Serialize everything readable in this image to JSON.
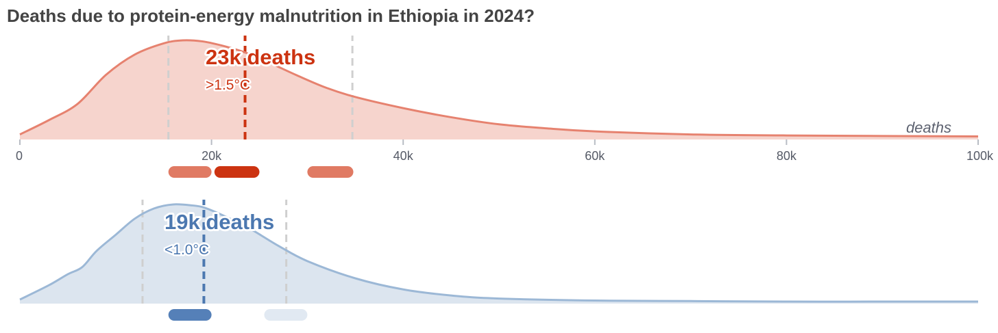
{
  "title": "Deaths due to protein-energy malnutrition in Ethiopia in 2024?",
  "chart_data": [
    {
      "type": "area",
      "scenario": ">1.5°C",
      "headline": "23k deaths",
      "axis_unit_label": "deaths",
      "xlim": [
        0,
        100000
      ],
      "x_ticks": [
        0,
        20000,
        40000,
        60000,
        80000,
        100000
      ],
      "x_tick_labels": [
        "0",
        "20k",
        "40k",
        "60k",
        "80k",
        "100k"
      ],
      "median": 23500,
      "interval": [
        15500,
        34700
      ],
      "x": [
        0,
        3000,
        6000,
        9000,
        12000,
        15000,
        17000,
        19000,
        21000,
        23500,
        26000,
        29000,
        32000,
        35000,
        40000,
        45000,
        50000,
        55000,
        60000,
        70000,
        80000,
        90000,
        100000
      ],
      "density": [
        0.05,
        0.19,
        0.35,
        0.64,
        0.84,
        0.95,
        0.98,
        0.97,
        0.93,
        0.86,
        0.76,
        0.63,
        0.51,
        0.42,
        0.31,
        0.22,
        0.15,
        0.11,
        0.08,
        0.05,
        0.04,
        0.035,
        0.03
      ],
      "range_pills": [
        {
          "start": 15500,
          "end": 20000,
          "color": "#e07a63"
        },
        {
          "start": 20300,
          "end": 25000,
          "color": "#cc3311"
        },
        {
          "start": 30000,
          "end": 34800,
          "color": "#e07a63"
        }
      ],
      "colors": {
        "fill": "#f6d4cd",
        "stroke": "#e6826f",
        "median": "#cc3311",
        "interval": "#cfcfcf",
        "text": "#cc3311"
      }
    },
    {
      "type": "area",
      "scenario": "<1.0°C",
      "headline": "19k deaths",
      "xlim": [
        0,
        100000
      ],
      "median": 19200,
      "interval": [
        12800,
        27800
      ],
      "x": [
        0,
        3000,
        5000,
        6500,
        8000,
        10000,
        12000,
        14000,
        16000,
        18000,
        19200,
        21000,
        24000,
        27000,
        30000,
        35000,
        40000,
        45000,
        50000,
        60000,
        70000,
        80000,
        90000,
        100000
      ],
      "density": [
        0.04,
        0.18,
        0.29,
        0.36,
        0.52,
        0.68,
        0.84,
        0.94,
        0.98,
        0.97,
        0.95,
        0.88,
        0.74,
        0.57,
        0.42,
        0.25,
        0.14,
        0.08,
        0.05,
        0.03,
        0.025,
        0.02,
        0.02,
        0.02
      ],
      "range_pills": [
        {
          "start": 15500,
          "end": 20000,
          "color": "#5580b8"
        },
        {
          "start": 25500,
          "end": 30000,
          "color": "#e1e9f2"
        }
      ],
      "colors": {
        "fill": "#dce5ef",
        "stroke": "#9cb8d6",
        "median": "#4c78b0",
        "interval": "#cfcfcf",
        "text": "#4c78b0"
      }
    }
  ]
}
